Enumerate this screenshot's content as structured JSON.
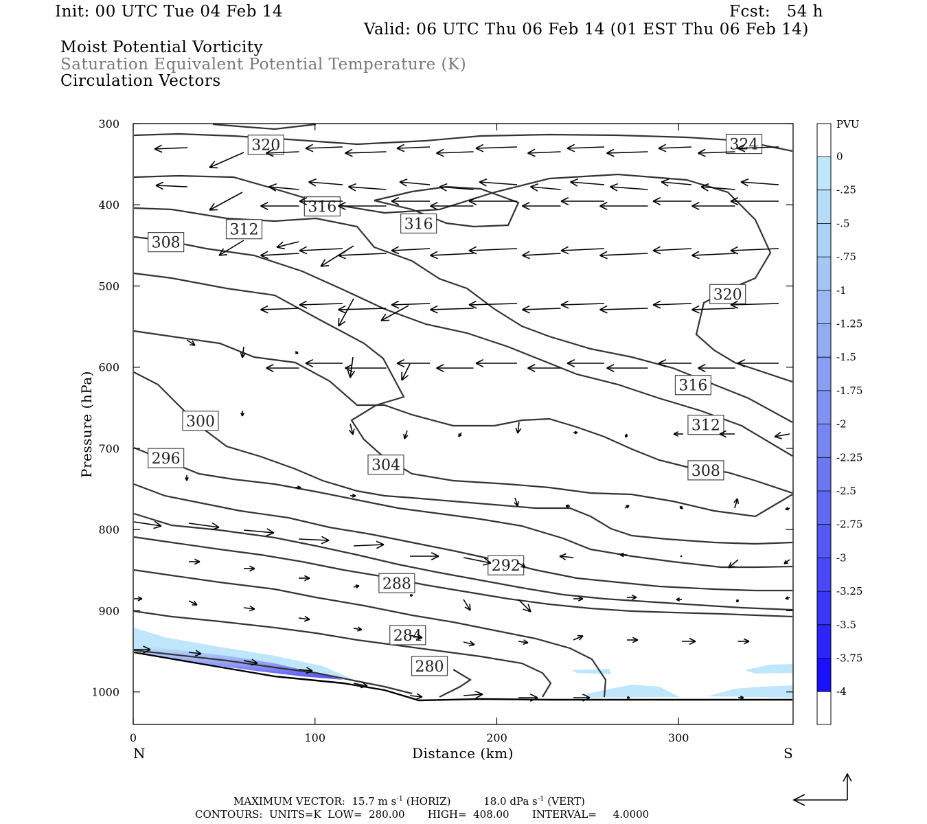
{
  "header": {
    "init": "Init: 00 UTC Tue 04 Feb 14",
    "fcst": "Fcst:   54 h",
    "valid": "Valid: 06 UTC Thu 06 Feb 14 (01 EST Thu 06 Feb 14)",
    "field1": "Moist Potential Vorticity",
    "field2": "Saturation Equivalent Potential Temperature (K)",
    "field3": "Circulation Vectors"
  },
  "footer": {
    "maxvec": "MAXIMUM VECTOR:  15.7 m s",
    "maxvec_exp1": "-1",
    "maxvec_mid": " (HORIZ)          18.0 dPa s",
    "maxvec_exp2": "-1",
    "maxvec_end": " (VERT)",
    "contours": "CONTOURS:  UNITS=K  LOW=  280.00       HIGH=  408.00       INTERVAL=     4.0000"
  },
  "chart_data": {
    "type": "cross-section",
    "xlabel": "Distance (km)",
    "ylabel": "Pressure (hPa)",
    "xlim": [
      0,
      363
    ],
    "ylim": [
      1040,
      300
    ],
    "x_ticks": [
      {
        "value": 0,
        "label": "0"
      },
      {
        "value": 100,
        "label": "100"
      },
      {
        "value": 200,
        "label": "200"
      },
      {
        "value": 300,
        "label": "300"
      }
    ],
    "y_ticks": [
      {
        "value": 300,
        "label": "300"
      },
      {
        "value": 400,
        "label": "400"
      },
      {
        "value": 500,
        "label": "500"
      },
      {
        "value": 600,
        "label": "600"
      },
      {
        "value": 700,
        "label": "700"
      },
      {
        "value": 800,
        "label": "800"
      },
      {
        "value": 900,
        "label": "900"
      },
      {
        "value": 1000,
        "label": "1000"
      }
    ],
    "endpoints": {
      "left": "N",
      "right": "S"
    },
    "colorbar": {
      "unit": "PVU",
      "labels": [
        "0",
        "-.25",
        "-.5",
        "-.75",
        "-1",
        "-1.25",
        "-1.5",
        "-1.75",
        "-2",
        "-2.25",
        "-2.5",
        "-2.75",
        "-3",
        "-3.25",
        "-3.5",
        "-3.75",
        "-4"
      ],
      "colors": [
        "#ffffff",
        "#bfe6fb",
        "#b6dcf9",
        "#aed2f7",
        "#a5c6f5",
        "#9cb9f3",
        "#93acf2",
        "#8a9ff1",
        "#8192f0",
        "#7785f0",
        "#6c77f0",
        "#6168f1",
        "#5559f2",
        "#4849f4",
        "#3a37f6",
        "#2b25f8",
        "#1a10fb"
      ]
    },
    "theta_labels": [
      {
        "text": "320",
        "x": 73,
        "p": 326
      },
      {
        "text": "324",
        "x": 336,
        "p": 325
      },
      {
        "text": "316",
        "x": 104,
        "p": 402
      },
      {
        "text": "316",
        "x": 157,
        "p": 423
      },
      {
        "text": "312",
        "x": 61,
        "p": 430
      },
      {
        "text": "308",
        "x": 18,
        "p": 446
      },
      {
        "text": "320",
        "x": 327,
        "p": 510
      },
      {
        "text": "316",
        "x": 308,
        "p": 622
      },
      {
        "text": "312",
        "x": 315,
        "p": 671
      },
      {
        "text": "300",
        "x": 37,
        "p": 666
      },
      {
        "text": "296",
        "x": 18,
        "p": 712
      },
      {
        "text": "304",
        "x": 139,
        "p": 720
      },
      {
        "text": "308",
        "x": 315,
        "p": 727
      },
      {
        "text": "292",
        "x": 205,
        "p": 844
      },
      {
        "text": "288",
        "x": 145,
        "p": 866
      },
      {
        "text": "284",
        "x": 151,
        "p": 930
      },
      {
        "text": "280",
        "x": 163,
        "p": 968
      }
    ],
    "max_vector": {
      "horiz": "15.7 m s-1",
      "vert": "18.0 dPa s-1"
    },
    "contours": {
      "units": "K",
      "low": 280.0,
      "high": 408.0,
      "interval": 4.0
    }
  }
}
